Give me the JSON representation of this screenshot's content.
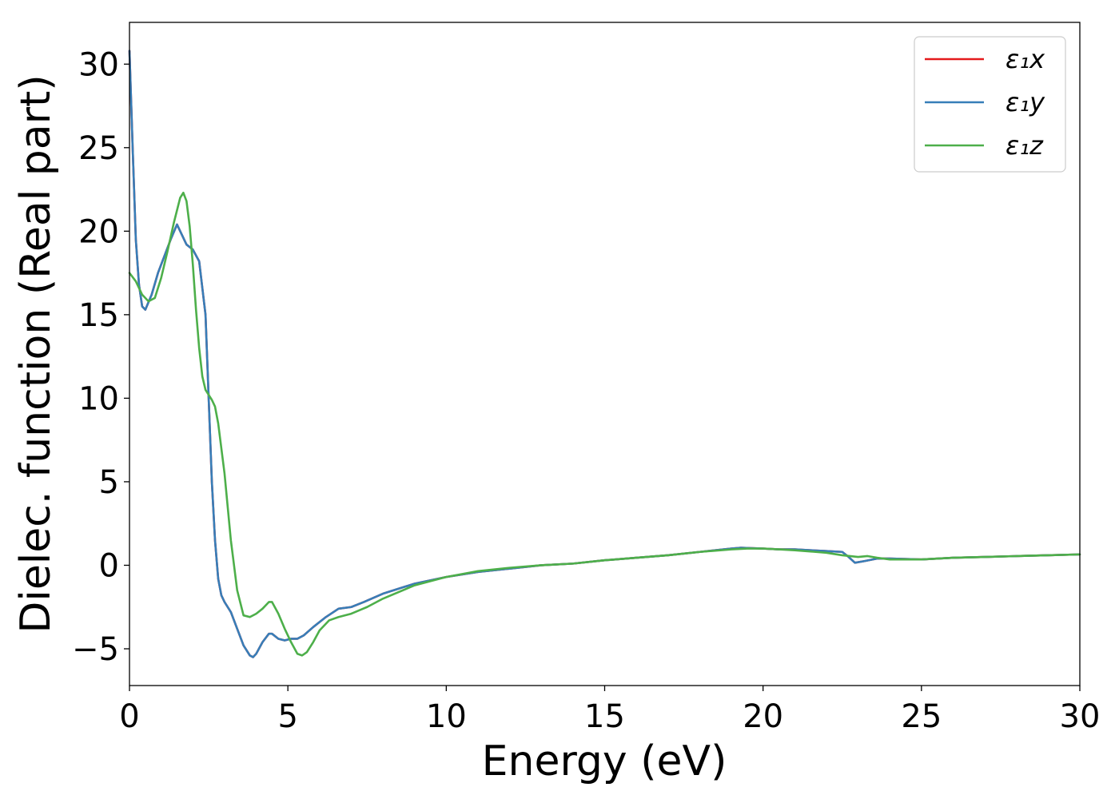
{
  "chart_data": {
    "type": "line",
    "title": "",
    "xlabel": "Energy (eV)",
    "ylabel": "Dielec. function (Real part)",
    "xlim": [
      0,
      30
    ],
    "ylim": [
      -7.2,
      32.5
    ],
    "xticks": [
      0,
      5,
      10,
      15,
      20,
      25,
      30
    ],
    "yticks": [
      -5,
      0,
      5,
      10,
      15,
      20,
      25,
      30
    ],
    "xtick_labels": [
      "0",
      "5",
      "10",
      "15",
      "20",
      "25",
      "30"
    ],
    "ytick_labels": [
      "−5",
      "0",
      "5",
      "10",
      "15",
      "20",
      "25",
      "30"
    ],
    "grid": false,
    "legend_position": "top-right",
    "series": [
      {
        "name": "ε₁x",
        "color": "#e41a1c",
        "x": [
          0,
          0.1,
          0.2,
          0.3,
          0.4,
          0.5,
          0.7,
          0.9,
          1.1,
          1.3,
          1.5,
          1.6,
          1.8,
          2.0,
          2.2,
          2.4,
          2.5,
          2.6,
          2.7,
          2.8,
          2.9,
          3.0,
          3.2,
          3.4,
          3.6,
          3.8,
          3.9,
          4.0,
          4.2,
          4.4,
          4.5,
          4.7,
          4.9,
          5.1,
          5.3,
          5.5,
          5.8,
          6.2,
          6.6,
          7.0,
          7.4,
          8.0,
          9.0,
          10.0,
          11.0,
          12.0,
          13.0,
          14.0,
          15.0,
          16.0,
          17.0,
          18.0,
          19.0,
          19.3,
          20.0,
          20.5,
          21.0,
          21.5,
          22.0,
          22.5,
          22.7,
          22.9,
          23.2,
          23.6,
          24.0,
          25.0,
          26.0,
          27.0,
          28.0,
          29.0,
          30.0
        ],
        "values": [
          30.8,
          25.0,
          19.5,
          16.8,
          15.5,
          15.3,
          16.2,
          17.5,
          18.5,
          19.5,
          20.4,
          20.0,
          19.2,
          18.9,
          18.2,
          15.0,
          10.0,
          5.0,
          1.5,
          -0.8,
          -1.8,
          -2.2,
          -2.8,
          -3.8,
          -4.8,
          -5.4,
          -5.5,
          -5.3,
          -4.6,
          -4.1,
          -4.1,
          -4.4,
          -4.5,
          -4.4,
          -4.4,
          -4.2,
          -3.7,
          -3.1,
          -2.6,
          -2.5,
          -2.2,
          -1.7,
          -1.1,
          -0.7,
          -0.4,
          -0.2,
          0.0,
          0.1,
          0.3,
          0.45,
          0.6,
          0.8,
          1.0,
          1.05,
          1.0,
          0.95,
          0.95,
          0.9,
          0.85,
          0.8,
          0.5,
          0.15,
          0.25,
          0.4,
          0.4,
          0.35,
          0.45,
          0.5,
          0.55,
          0.6,
          0.65
        ]
      },
      {
        "name": "ε₁y",
        "color": "#377eb8",
        "x": [
          0,
          0.1,
          0.2,
          0.3,
          0.4,
          0.5,
          0.7,
          0.9,
          1.1,
          1.3,
          1.5,
          1.6,
          1.8,
          2.0,
          2.2,
          2.4,
          2.5,
          2.6,
          2.7,
          2.8,
          2.9,
          3.0,
          3.2,
          3.4,
          3.6,
          3.8,
          3.9,
          4.0,
          4.2,
          4.4,
          4.5,
          4.7,
          4.9,
          5.1,
          5.3,
          5.5,
          5.8,
          6.2,
          6.6,
          7.0,
          7.4,
          8.0,
          9.0,
          10.0,
          11.0,
          12.0,
          13.0,
          14.0,
          15.0,
          16.0,
          17.0,
          18.0,
          19.0,
          19.3,
          20.0,
          20.5,
          21.0,
          21.5,
          22.0,
          22.5,
          22.7,
          22.9,
          23.2,
          23.6,
          24.0,
          25.0,
          26.0,
          27.0,
          28.0,
          29.0,
          30.0
        ],
        "values": [
          30.8,
          25.0,
          19.5,
          16.8,
          15.5,
          15.3,
          16.2,
          17.5,
          18.5,
          19.5,
          20.4,
          20.0,
          19.2,
          18.9,
          18.2,
          15.0,
          10.0,
          5.0,
          1.5,
          -0.8,
          -1.8,
          -2.2,
          -2.8,
          -3.8,
          -4.8,
          -5.4,
          -5.5,
          -5.3,
          -4.6,
          -4.1,
          -4.1,
          -4.4,
          -4.5,
          -4.4,
          -4.4,
          -4.2,
          -3.7,
          -3.1,
          -2.6,
          -2.5,
          -2.2,
          -1.7,
          -1.1,
          -0.7,
          -0.4,
          -0.2,
          0.0,
          0.1,
          0.3,
          0.45,
          0.6,
          0.8,
          1.0,
          1.05,
          1.0,
          0.95,
          0.95,
          0.9,
          0.85,
          0.8,
          0.5,
          0.15,
          0.25,
          0.4,
          0.4,
          0.35,
          0.45,
          0.5,
          0.55,
          0.6,
          0.65
        ]
      },
      {
        "name": "ε₁z",
        "color": "#4daf4a",
        "x": [
          0,
          0.2,
          0.4,
          0.6,
          0.8,
          1.0,
          1.2,
          1.4,
          1.6,
          1.7,
          1.8,
          1.9,
          2.0,
          2.1,
          2.2,
          2.3,
          2.4,
          2.5,
          2.6,
          2.7,
          2.8,
          3.0,
          3.2,
          3.4,
          3.6,
          3.8,
          4.0,
          4.2,
          4.4,
          4.5,
          4.7,
          4.9,
          5.1,
          5.3,
          5.45,
          5.6,
          5.8,
          6.0,
          6.3,
          6.6,
          7.0,
          7.5,
          8.0,
          9.0,
          10.0,
          11.0,
          12.0,
          13.0,
          14.0,
          15.0,
          16.0,
          17.0,
          18.0,
          19.0,
          19.5,
          20.0,
          20.5,
          21.0,
          22.0,
          22.5,
          23.0,
          23.3,
          23.6,
          24.0,
          25.0,
          26.0,
          27.0,
          28.0,
          29.0,
          30.0
        ],
        "values": [
          17.5,
          17.0,
          16.2,
          15.8,
          16.0,
          17.2,
          18.8,
          20.5,
          22.0,
          22.3,
          21.8,
          20.3,
          18.0,
          15.3,
          13.0,
          11.3,
          10.5,
          10.2,
          9.9,
          9.5,
          8.5,
          5.5,
          1.5,
          -1.5,
          -3.0,
          -3.1,
          -2.9,
          -2.6,
          -2.2,
          -2.2,
          -2.9,
          -3.8,
          -4.6,
          -5.3,
          -5.4,
          -5.2,
          -4.6,
          -3.9,
          -3.3,
          -3.1,
          -2.9,
          -2.5,
          -2.0,
          -1.2,
          -0.7,
          -0.35,
          -0.15,
          0.0,
          0.1,
          0.3,
          0.45,
          0.6,
          0.8,
          0.95,
          1.0,
          1.0,
          0.95,
          0.9,
          0.75,
          0.6,
          0.5,
          0.55,
          0.45,
          0.35,
          0.35,
          0.45,
          0.5,
          0.55,
          0.6,
          0.65
        ]
      }
    ]
  }
}
